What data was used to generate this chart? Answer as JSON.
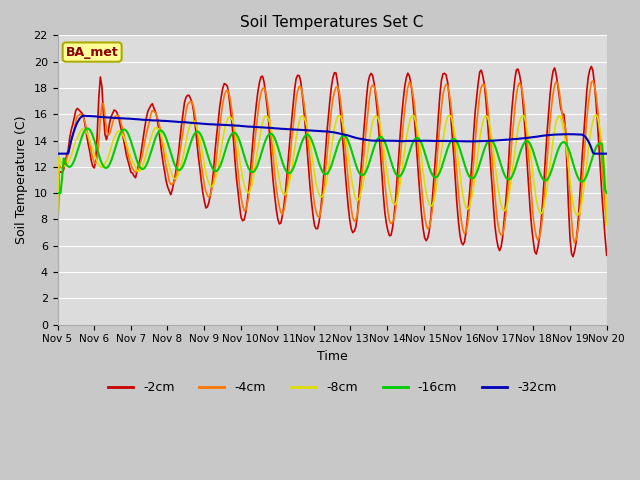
{
  "title": "Soil Temperatures Set C",
  "xlabel": "Time",
  "ylabel": "Soil Temperature (C)",
  "annotation": "BA_met",
  "ylim": [
    0,
    22
  ],
  "yticks": [
    0,
    2,
    4,
    6,
    8,
    10,
    12,
    14,
    16,
    18,
    20,
    22
  ],
  "xtick_labels": [
    "Nov 5",
    "Nov 6",
    "Nov 7",
    "Nov 8",
    "Nov 9",
    "Nov 10",
    "Nov 11",
    "Nov 12",
    "Nov 13",
    "Nov 14",
    "Nov 15",
    "Nov 16",
    "Nov 17",
    "Nov 18",
    "Nov 19",
    "Nov 20"
  ],
  "colors": {
    "-2cm": "#cc0000",
    "-4cm": "#ff7700",
    "-8cm": "#dddd00",
    "-16cm": "#00cc00",
    "-32cm": "#0000bb"
  },
  "figsize": [
    6.4,
    4.8
  ],
  "dpi": 100
}
